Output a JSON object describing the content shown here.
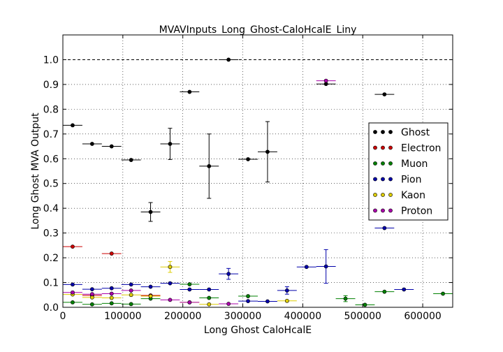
{
  "chart_data": {
    "type": "scatter",
    "title": "MVAVInputs_Long_Ghost-CaloHcalE_Liny",
    "xlabel": "Long Ghost CaloHcalE",
    "ylabel": "Long Ghost MVA Output",
    "xlim": [
      0,
      650000
    ],
    "ylim": [
      0,
      1.1
    ],
    "x_ticks": [
      0,
      100000,
      200000,
      300000,
      400000,
      500000,
      600000
    ],
    "x_tick_labels": [
      "0",
      "100000",
      "200000",
      "300000",
      "400000",
      "500000",
      "600000"
    ],
    "y_ticks": [
      0.0,
      0.1,
      0.2,
      0.3,
      0.4,
      0.5,
      0.6,
      0.7,
      0.8,
      0.9,
      1.0
    ],
    "y_tick_labels": [
      "0.0",
      "0.1",
      "0.2",
      "0.3",
      "0.4",
      "0.5",
      "0.6",
      "0.7",
      "0.8",
      "0.9",
      "1.0"
    ],
    "grid": true,
    "reference_line_y": 1.0,
    "legend_position": "right",
    "series": [
      {
        "name": "Ghost",
        "color": "#000000",
        "points": [
          {
            "x": 16250,
            "y": 0.735,
            "xerr": 16250,
            "yerr": 0
          },
          {
            "x": 48750,
            "y": 0.66,
            "xerr": 16250,
            "yerr": 0
          },
          {
            "x": 81250,
            "y": 0.65,
            "xerr": 16250,
            "yerr": 0
          },
          {
            "x": 113750,
            "y": 0.595,
            "xerr": 16250,
            "yerr": 0
          },
          {
            "x": 146250,
            "y": 0.385,
            "xerr": 16250,
            "yerr": 0.038
          },
          {
            "x": 178750,
            "y": 0.66,
            "xerr": 16250,
            "yerr": 0.063
          },
          {
            "x": 211250,
            "y": 0.87,
            "xerr": 16250,
            "yerr": 0
          },
          {
            "x": 243750,
            "y": 0.57,
            "xerr": 16250,
            "yerr": 0.13
          },
          {
            "x": 276250,
            "y": 1.0,
            "xerr": 16250,
            "yerr": 0
          },
          {
            "x": 308750,
            "y": 0.598,
            "xerr": 16250,
            "yerr": 0
          },
          {
            "x": 341250,
            "y": 0.628,
            "xerr": 16250,
            "yerr": 0.122
          },
          {
            "x": 438750,
            "y": 0.902,
            "xerr": 16250,
            "yerr": 0
          },
          {
            "x": 536250,
            "y": 0.86,
            "xerr": 16250,
            "yerr": 0
          }
        ]
      },
      {
        "name": "Electron",
        "color": "#cc0000",
        "points": [
          {
            "x": 16250,
            "y": 0.245,
            "xerr": 16250,
            "yerr": 0
          },
          {
            "x": 48750,
            "y": 0.048,
            "xerr": 16250,
            "yerr": 0
          },
          {
            "x": 81250,
            "y": 0.217,
            "xerr": 16250,
            "yerr": 0
          },
          {
            "x": 146250,
            "y": 0.048,
            "xerr": 16250,
            "yerr": 0
          }
        ]
      },
      {
        "name": "Muon",
        "color": "#008000",
        "points": [
          {
            "x": 16250,
            "y": 0.02,
            "xerr": 16250,
            "yerr": 0
          },
          {
            "x": 48750,
            "y": 0.012,
            "xerr": 16250,
            "yerr": 0
          },
          {
            "x": 81250,
            "y": 0.016,
            "xerr": 16250,
            "yerr": 0
          },
          {
            "x": 113750,
            "y": 0.013,
            "xerr": 16250,
            "yerr": 0
          },
          {
            "x": 146250,
            "y": 0.035,
            "xerr": 16250,
            "yerr": 0
          },
          {
            "x": 211250,
            "y": 0.093,
            "xerr": 16250,
            "yerr": 0
          },
          {
            "x": 243750,
            "y": 0.038,
            "xerr": 16250,
            "yerr": 0
          },
          {
            "x": 308750,
            "y": 0.045,
            "xerr": 16250,
            "yerr": 0
          },
          {
            "x": 471250,
            "y": 0.035,
            "xerr": 16250,
            "yerr": 0.012
          },
          {
            "x": 503750,
            "y": 0.01,
            "xerr": 16250,
            "yerr": 0
          },
          {
            "x": 536250,
            "y": 0.063,
            "xerr": 16250,
            "yerr": 0
          },
          {
            "x": 633750,
            "y": 0.055,
            "xerr": 16250,
            "yerr": 0
          }
        ]
      },
      {
        "name": "Pion",
        "color": "#0000aa",
        "points": [
          {
            "x": 16250,
            "y": 0.092,
            "xerr": 16250,
            "yerr": 0
          },
          {
            "x": 48750,
            "y": 0.073,
            "xerr": 16250,
            "yerr": 0
          },
          {
            "x": 81250,
            "y": 0.077,
            "xerr": 16250,
            "yerr": 0
          },
          {
            "x": 113750,
            "y": 0.092,
            "xerr": 16250,
            "yerr": 0
          },
          {
            "x": 146250,
            "y": 0.083,
            "xerr": 16250,
            "yerr": 0
          },
          {
            "x": 178750,
            "y": 0.097,
            "xerr": 16250,
            "yerr": 0
          },
          {
            "x": 211250,
            "y": 0.072,
            "xerr": 16250,
            "yerr": 0
          },
          {
            "x": 243750,
            "y": 0.072,
            "xerr": 16250,
            "yerr": 0
          },
          {
            "x": 276250,
            "y": 0.135,
            "xerr": 16250,
            "yerr": 0.022
          },
          {
            "x": 308750,
            "y": 0.025,
            "xerr": 16250,
            "yerr": 0
          },
          {
            "x": 341250,
            "y": 0.024,
            "xerr": 16250,
            "yerr": 0
          },
          {
            "x": 373750,
            "y": 0.068,
            "xerr": 16250,
            "yerr": 0.015
          },
          {
            "x": 406250,
            "y": 0.163,
            "xerr": 16250,
            "yerr": 0
          },
          {
            "x": 438750,
            "y": 0.165,
            "xerr": 16250,
            "yerr": 0.068
          },
          {
            "x": 536250,
            "y": 0.32,
            "xerr": 16250,
            "yerr": 0
          },
          {
            "x": 568750,
            "y": 0.072,
            "xerr": 16250,
            "yerr": 0
          }
        ]
      },
      {
        "name": "Kaon",
        "color": "#ddcc00",
        "points": [
          {
            "x": 16250,
            "y": 0.052,
            "xerr": 16250,
            "yerr": 0
          },
          {
            "x": 48750,
            "y": 0.04,
            "xerr": 16250,
            "yerr": 0
          },
          {
            "x": 81250,
            "y": 0.038,
            "xerr": 16250,
            "yerr": 0
          },
          {
            "x": 113750,
            "y": 0.05,
            "xerr": 16250,
            "yerr": 0
          },
          {
            "x": 146250,
            "y": 0.045,
            "xerr": 16250,
            "yerr": 0
          },
          {
            "x": 178750,
            "y": 0.163,
            "xerr": 16250,
            "yerr": 0.022
          },
          {
            "x": 211250,
            "y": 0.02,
            "xerr": 16250,
            "yerr": 0
          },
          {
            "x": 243750,
            "y": 0.012,
            "xerr": 16250,
            "yerr": 0
          },
          {
            "x": 373750,
            "y": 0.026,
            "xerr": 16250,
            "yerr": 0
          }
        ]
      },
      {
        "name": "Proton",
        "color": "#aa00aa",
        "points": [
          {
            "x": 16250,
            "y": 0.06,
            "xerr": 16250,
            "yerr": 0
          },
          {
            "x": 48750,
            "y": 0.053,
            "xerr": 16250,
            "yerr": 0
          },
          {
            "x": 81250,
            "y": 0.055,
            "xerr": 16250,
            "yerr": 0
          },
          {
            "x": 113750,
            "y": 0.068,
            "xerr": 16250,
            "yerr": 0
          },
          {
            "x": 178750,
            "y": 0.03,
            "xerr": 16250,
            "yerr": 0
          },
          {
            "x": 211250,
            "y": 0.02,
            "xerr": 16250,
            "yerr": 0
          },
          {
            "x": 276250,
            "y": 0.014,
            "xerr": 16250,
            "yerr": 0
          },
          {
            "x": 438750,
            "y": 0.915,
            "xerr": 16250,
            "yerr": 0
          }
        ]
      }
    ]
  }
}
